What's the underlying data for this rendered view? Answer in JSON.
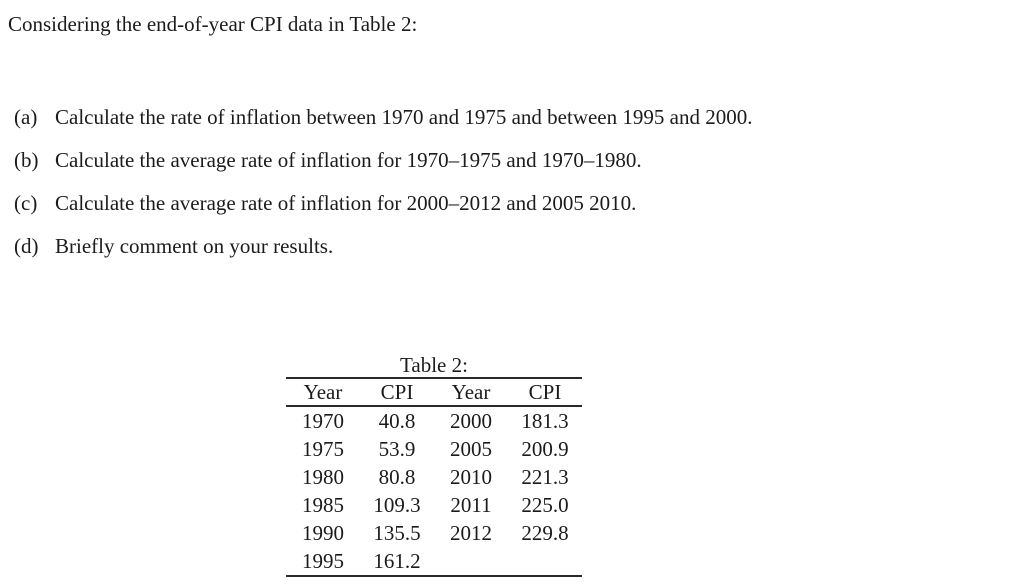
{
  "page": {
    "title": "Considering the end-of-year CPI data in Table 2:",
    "items": [
      {
        "label": "(a)",
        "text": "Calculate the rate of inflation between 1970 and 1975 and between 1995 and 2000."
      },
      {
        "label": "(b)",
        "text": "Calculate the average rate of inflation for 1970–1975 and 1970–1980."
      },
      {
        "label": "(c)",
        "text": "Calculate the average rate of inflation for 2000–2012 and 2005 2010."
      },
      {
        "label": "(d)",
        "text": "Briefly comment on your results."
      }
    ]
  },
  "table": {
    "caption": "Table 2:",
    "headers": [
      "Year",
      "CPI",
      "Year",
      "CPI"
    ],
    "rows": [
      [
        "1970",
        "40.8",
        "2000",
        "181.3"
      ],
      [
        "1975",
        "53.9",
        "2005",
        "200.9"
      ],
      [
        "1980",
        "80.8",
        "2010",
        "221.3"
      ],
      [
        "1985",
        "109.3",
        "2011",
        "225.0"
      ],
      [
        "1990",
        "135.5",
        "2012",
        "229.8"
      ],
      [
        "1995",
        "161.2",
        "",
        ""
      ]
    ]
  },
  "colors": {
    "background": "#ffffff",
    "text": "#1b1b1b",
    "rule": "#2a2a2a"
  }
}
